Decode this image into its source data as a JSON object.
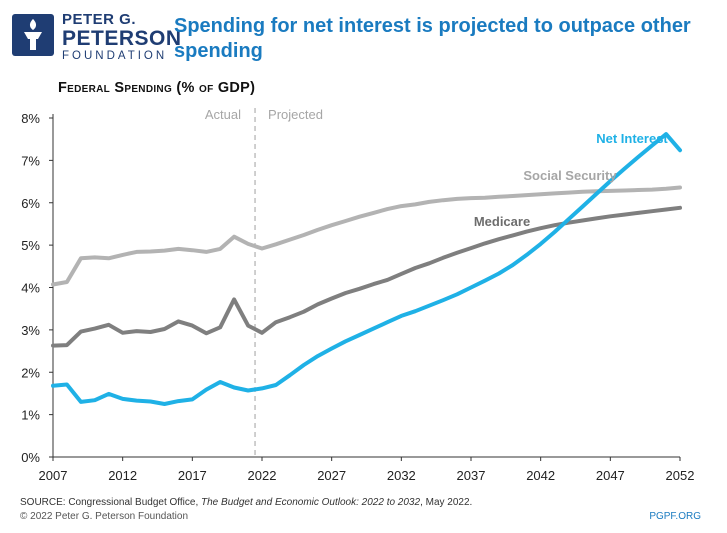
{
  "logo": {
    "line1": "PETER G.",
    "line2": "PETERSON",
    "line3": "FOUNDATION"
  },
  "title": "Spending for net interest is projected to outpace other spending",
  "chart_data": {
    "type": "line",
    "subtitle": "Federal Spending (% of GDP)",
    "xlim": [
      2007,
      2052
    ],
    "ylim": [
      0,
      8
    ],
    "x_ticks": [
      "2007",
      "2012",
      "2017",
      "2022",
      "2027",
      "2032",
      "2037",
      "2042",
      "2047",
      "2052"
    ],
    "y_ticks": [
      "0%",
      "1%",
      "2%",
      "3%",
      "4%",
      "5%",
      "6%",
      "7%",
      "8%"
    ],
    "y_tick_values": [
      0,
      1,
      2,
      3,
      4,
      5,
      6,
      7,
      8
    ],
    "divider_x": 2021.5,
    "period_labels": {
      "actual": "Actual",
      "projected": "Projected"
    },
    "grid": false,
    "colors": {
      "social_security": "#b3b3b3",
      "medicare": "#7f7f7f",
      "net_interest": "#1fb1e6"
    },
    "x": [
      2007,
      2008,
      2009,
      2010,
      2011,
      2012,
      2013,
      2014,
      2015,
      2016,
      2017,
      2018,
      2019,
      2020,
      2021,
      2022,
      2023,
      2024,
      2025,
      2026,
      2027,
      2028,
      2029,
      2030,
      2031,
      2032,
      2033,
      2034,
      2035,
      2036,
      2037,
      2038,
      2039,
      2040,
      2041,
      2042,
      2043,
      2044,
      2045,
      2046,
      2047,
      2048,
      2049,
      2050,
      2051,
      2052
    ],
    "series": [
      {
        "key": "social_security",
        "name": "Social Security",
        "values": [
          4.07,
          4.13,
          4.69,
          4.71,
          4.69,
          4.77,
          4.84,
          4.85,
          4.87,
          4.91,
          4.88,
          4.84,
          4.91,
          5.2,
          5.03,
          4.92,
          5.02,
          5.13,
          5.24,
          5.36,
          5.47,
          5.57,
          5.67,
          5.76,
          5.85,
          5.92,
          5.96,
          6.02,
          6.06,
          6.09,
          6.11,
          6.12,
          6.14,
          6.16,
          6.18,
          6.2,
          6.22,
          6.24,
          6.26,
          6.27,
          6.28,
          6.29,
          6.3,
          6.31,
          6.33,
          6.36
        ]
      },
      {
        "key": "medicare",
        "name": "Medicare",
        "values": [
          2.63,
          2.64,
          2.96,
          3.03,
          3.12,
          2.93,
          2.97,
          2.95,
          3.02,
          3.2,
          3.1,
          2.92,
          3.06,
          3.72,
          3.1,
          2.93,
          3.18,
          3.3,
          3.43,
          3.6,
          3.74,
          3.87,
          3.97,
          4.08,
          4.18,
          4.32,
          4.46,
          4.57,
          4.7,
          4.82,
          4.93,
          5.04,
          5.14,
          5.23,
          5.32,
          5.4,
          5.47,
          5.53,
          5.58,
          5.63,
          5.68,
          5.72,
          5.76,
          5.8,
          5.84,
          5.88
        ]
      },
      {
        "key": "net_interest",
        "name": "Net Interest",
        "values": [
          1.68,
          1.71,
          1.3,
          1.34,
          1.49,
          1.37,
          1.33,
          1.31,
          1.25,
          1.32,
          1.36,
          1.59,
          1.77,
          1.64,
          1.57,
          1.62,
          1.7,
          1.93,
          2.17,
          2.38,
          2.56,
          2.73,
          2.88,
          3.03,
          3.18,
          3.33,
          3.44,
          3.57,
          3.7,
          3.84,
          4.0,
          4.16,
          4.33,
          4.53,
          4.77,
          5.03,
          5.31,
          5.61,
          5.91,
          6.21,
          6.51,
          6.8,
          7.08,
          7.35,
          7.62,
          7.24
        ]
      }
    ]
  },
  "footer": {
    "source_prefix": "SOURCE: Congressional Budget Office, ",
    "source_title": "The Budget and Economic Outlook: 2022 to 2032",
    "source_suffix": ", May 2022.",
    "copyright": "© 2022 Peter G. Peterson Foundation",
    "site": "PGPF.ORG"
  }
}
